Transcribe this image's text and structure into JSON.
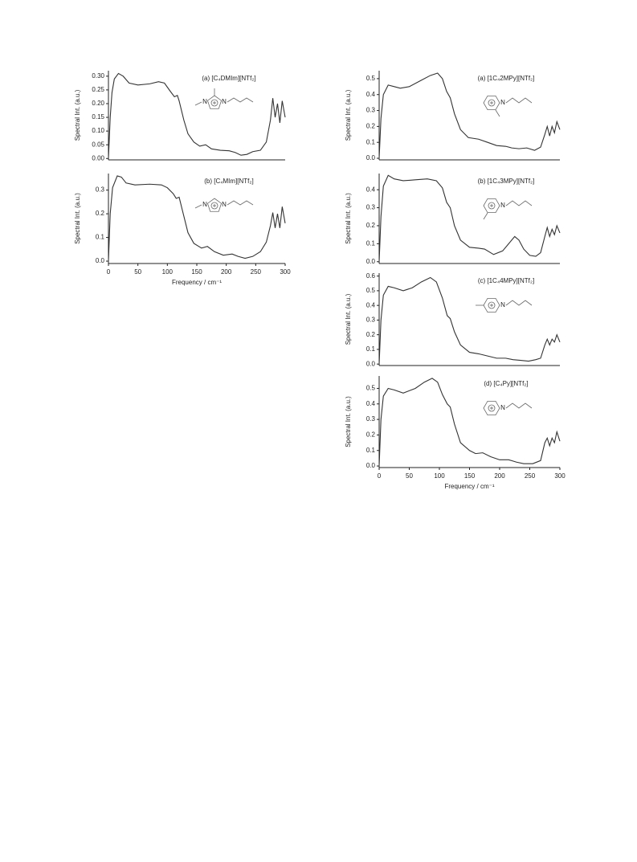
{
  "chart_data": [
    {
      "type": "line",
      "title": "(a) [C₄DMIm][NTf₂]",
      "ylabel": "Spectral Int. (a.u.)",
      "structure_labels": [
        "N",
        "N"
      ],
      "xlim": [
        0,
        300
      ],
      "xtick_labels": false,
      "ylim": [
        -0.005,
        0.32
      ],
      "yticks": [
        {
          "value": 0,
          "label": "0.00"
        },
        0.05,
        {
          "value": 0.1,
          "label": "0.10"
        },
        0.15,
        {
          "value": 0.2,
          "label": "0.20"
        },
        0.25,
        {
          "value": 0.3,
          "label": "0.30"
        }
      ],
      "x": [
        0,
        3,
        6,
        10,
        17,
        25,
        35,
        50,
        70,
        85,
        95,
        105,
        112,
        117,
        120,
        128,
        135,
        145,
        155,
        165,
        175,
        190,
        205,
        215,
        225,
        235,
        245,
        258,
        268,
        275,
        279,
        283,
        287,
        291,
        295,
        300
      ],
      "series": [
        {
          "color": "#333333",
          "values": [
            0.0,
            0.15,
            0.24,
            0.29,
            0.31,
            0.3,
            0.275,
            0.268,
            0.272,
            0.28,
            0.275,
            0.245,
            0.225,
            0.23,
            0.21,
            0.14,
            0.09,
            0.06,
            0.045,
            0.05,
            0.035,
            0.03,
            0.028,
            0.022,
            0.012,
            0.015,
            0.025,
            0.03,
            0.06,
            0.14,
            0.22,
            0.15,
            0.2,
            0.13,
            0.21,
            0.15
          ]
        }
      ]
    },
    {
      "type": "line",
      "title": "(b) [C₄MIm][NTf₂]",
      "ylabel": "Spectral Int. (a.u.)",
      "xlabel": "Frequency / cm⁻¹",
      "structure_labels": [
        "N",
        "N"
      ],
      "xlim": [
        0,
        300
      ],
      "xticks": [
        0,
        50,
        100,
        150,
        200,
        250,
        300
      ],
      "ylim": [
        -0.01,
        0.37
      ],
      "yticks": [
        {
          "value": 0,
          "label": "0.0"
        },
        0.1,
        0.2,
        0.3
      ],
      "x": [
        0,
        3,
        7,
        15,
        22,
        30,
        45,
        70,
        90,
        100,
        110,
        115,
        120,
        125,
        135,
        145,
        158,
        168,
        180,
        195,
        210,
        220,
        232,
        245,
        258,
        268,
        275,
        279,
        283,
        287,
        291,
        295,
        300
      ],
      "series": [
        {
          "color": "#333333",
          "values": [
            0.0,
            0.2,
            0.31,
            0.36,
            0.355,
            0.33,
            0.322,
            0.325,
            0.322,
            0.31,
            0.285,
            0.265,
            0.27,
            0.22,
            0.12,
            0.075,
            0.055,
            0.062,
            0.04,
            0.025,
            0.03,
            0.02,
            0.012,
            0.02,
            0.04,
            0.08,
            0.15,
            0.205,
            0.14,
            0.2,
            0.14,
            0.23,
            0.16
          ]
        }
      ]
    },
    {
      "type": "line",
      "title": "(a) [1C₄2MPy][NTf₂]",
      "ylabel": "Spectral Int. (a.u.)",
      "structure_labels": [
        "N"
      ],
      "xlim": [
        0,
        300
      ],
      "xtick_labels": false,
      "ylim": [
        -0.01,
        0.55
      ],
      "yticks": [
        {
          "value": 0,
          "label": "0.0"
        },
        0.1,
        0.2,
        0.3,
        0.4,
        0.5
      ],
      "x": [
        0,
        3,
        7,
        15,
        25,
        35,
        50,
        70,
        85,
        97,
        105,
        112,
        118,
        125,
        135,
        148,
        165,
        180,
        195,
        210,
        220,
        232,
        245,
        258,
        268,
        275,
        279,
        283,
        287,
        291,
        295,
        300
      ],
      "series": [
        {
          "color": "#333333",
          "values": [
            0.0,
            0.25,
            0.4,
            0.46,
            0.45,
            0.44,
            0.45,
            0.49,
            0.52,
            0.535,
            0.5,
            0.42,
            0.38,
            0.28,
            0.18,
            0.13,
            0.12,
            0.1,
            0.08,
            0.075,
            0.065,
            0.06,
            0.065,
            0.05,
            0.07,
            0.15,
            0.2,
            0.14,
            0.2,
            0.16,
            0.23,
            0.18
          ]
        }
      ]
    },
    {
      "type": "line",
      "title": "(b) [1C₄3MPy][NTf₂]",
      "ylabel": "Spectral Int. (a.u.)",
      "structure_labels": [
        "N"
      ],
      "xlim": [
        0,
        300
      ],
      "xtick_labels": false,
      "ylim": [
        -0.01,
        0.49
      ],
      "yticks": [
        {
          "value": 0,
          "label": "0.0"
        },
        0.1,
        0.2,
        0.3,
        0.4
      ],
      "x": [
        0,
        3,
        7,
        15,
        25,
        40,
        60,
        80,
        95,
        105,
        112,
        118,
        125,
        135,
        150,
        165,
        175,
        190,
        205,
        215,
        225,
        232,
        240,
        250,
        260,
        268,
        275,
        279,
        283,
        287,
        291,
        295,
        300
      ],
      "series": [
        {
          "color": "#333333",
          "values": [
            0.0,
            0.25,
            0.42,
            0.48,
            0.46,
            0.45,
            0.455,
            0.46,
            0.45,
            0.41,
            0.33,
            0.3,
            0.2,
            0.12,
            0.08,
            0.075,
            0.07,
            0.04,
            0.06,
            0.1,
            0.14,
            0.12,
            0.07,
            0.035,
            0.03,
            0.05,
            0.14,
            0.19,
            0.14,
            0.18,
            0.15,
            0.2,
            0.16
          ]
        }
      ]
    },
    {
      "type": "line",
      "title": "(c) [1C₄4MPy][NTf₂]",
      "ylabel": "Spectral Int. (a.u.)",
      "structure_labels": [
        "N"
      ],
      "xlim": [
        0,
        300
      ],
      "xtick_labels": false,
      "ylim": [
        -0.01,
        0.62
      ],
      "yticks": [
        {
          "value": 0,
          "label": "0.0"
        },
        0.1,
        0.2,
        0.3,
        0.4,
        0.5,
        0.6
      ],
      "x": [
        0,
        3,
        7,
        15,
        25,
        40,
        55,
        70,
        85,
        95,
        105,
        113,
        118,
        125,
        135,
        150,
        165,
        180,
        195,
        210,
        222,
        235,
        248,
        260,
        268,
        275,
        279,
        283,
        287,
        291,
        295,
        300
      ],
      "series": [
        {
          "color": "#333333",
          "values": [
            0.0,
            0.3,
            0.47,
            0.53,
            0.52,
            0.5,
            0.52,
            0.56,
            0.59,
            0.56,
            0.45,
            0.33,
            0.31,
            0.22,
            0.13,
            0.08,
            0.07,
            0.055,
            0.04,
            0.04,
            0.03,
            0.025,
            0.02,
            0.03,
            0.04,
            0.13,
            0.17,
            0.13,
            0.17,
            0.15,
            0.2,
            0.15
          ]
        }
      ]
    },
    {
      "type": "line",
      "title": "(d) [C₄Py][NTf₂]",
      "ylabel": "Spectral Int. (a.u.)",
      "xlabel": "Frequency / cm⁻¹",
      "structure_labels": [
        "N"
      ],
      "xlim": [
        0,
        300
      ],
      "xticks": [
        0,
        50,
        100,
        150,
        200,
        250,
        300
      ],
      "ylim": [
        -0.01,
        0.58
      ],
      "yticks": [
        {
          "value": 0,
          "label": "0.0"
        },
        0.1,
        0.2,
        0.3,
        0.4,
        0.5
      ],
      "x": [
        0,
        3,
        7,
        15,
        25,
        40,
        60,
        75,
        88,
        97,
        105,
        113,
        118,
        125,
        135,
        150,
        160,
        172,
        185,
        200,
        215,
        228,
        240,
        255,
        268,
        275,
        279,
        283,
        287,
        291,
        295,
        300
      ],
      "series": [
        {
          "color": "#333333",
          "values": [
            0.0,
            0.3,
            0.45,
            0.5,
            0.49,
            0.47,
            0.5,
            0.54,
            0.565,
            0.54,
            0.46,
            0.4,
            0.38,
            0.27,
            0.15,
            0.1,
            0.08,
            0.085,
            0.06,
            0.04,
            0.04,
            0.025,
            0.015,
            0.015,
            0.035,
            0.15,
            0.18,
            0.13,
            0.18,
            0.15,
            0.22,
            0.16
          ]
        }
      ]
    }
  ]
}
